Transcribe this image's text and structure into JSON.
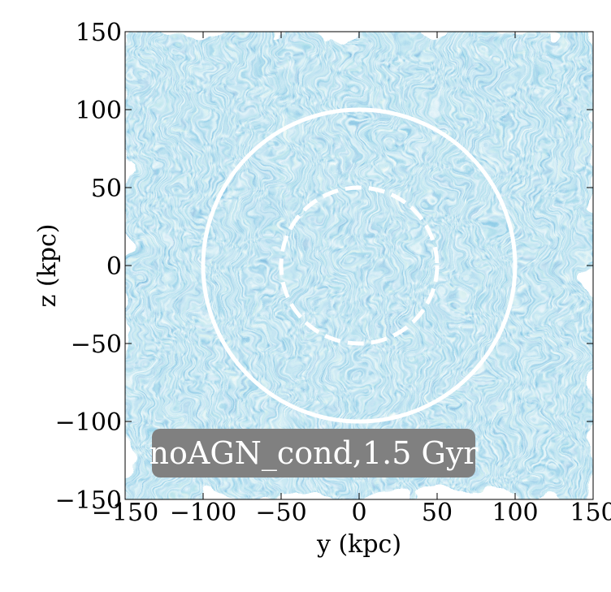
{
  "chart_data": {
    "type": "heatmap",
    "title": "",
    "xlabel": "y  (kpc)",
    "ylabel": "z  (kpc)",
    "xlim": [
      -150,
      150
    ],
    "ylim": [
      -150,
      150
    ],
    "x_ticks": [
      -150,
      -100,
      -50,
      0,
      50,
      100,
      150
    ],
    "y_ticks": [
      -150,
      -100,
      -50,
      0,
      50,
      100,
      150
    ],
    "x_tick_labels": [
      "−150",
      "−100",
      "−50",
      "0",
      "50",
      "100",
      "150"
    ],
    "y_tick_labels": [
      "−150",
      "−100",
      "−50",
      "0",
      "50",
      "100",
      "150"
    ],
    "field_description": "line-integral-convolution texture of velocity field",
    "colormap": [
      "#0d1f5c",
      "#1d5aa0",
      "#2f86c1",
      "#58b3cf",
      "#a8dcc8",
      "#f2f7c8"
    ],
    "circles": [
      {
        "center": [
          0,
          0
        ],
        "radius": 100,
        "style": "solid",
        "color": "#ffffff"
      },
      {
        "center": [
          0,
          0
        ],
        "radius": 50,
        "style": "dashed",
        "color": "#ffffff"
      }
    ],
    "annotation": {
      "text": "noAGN_cond,1.5 Gyr",
      "box_color": "#808080",
      "text_color": "#ffffff"
    },
    "grid": false
  }
}
